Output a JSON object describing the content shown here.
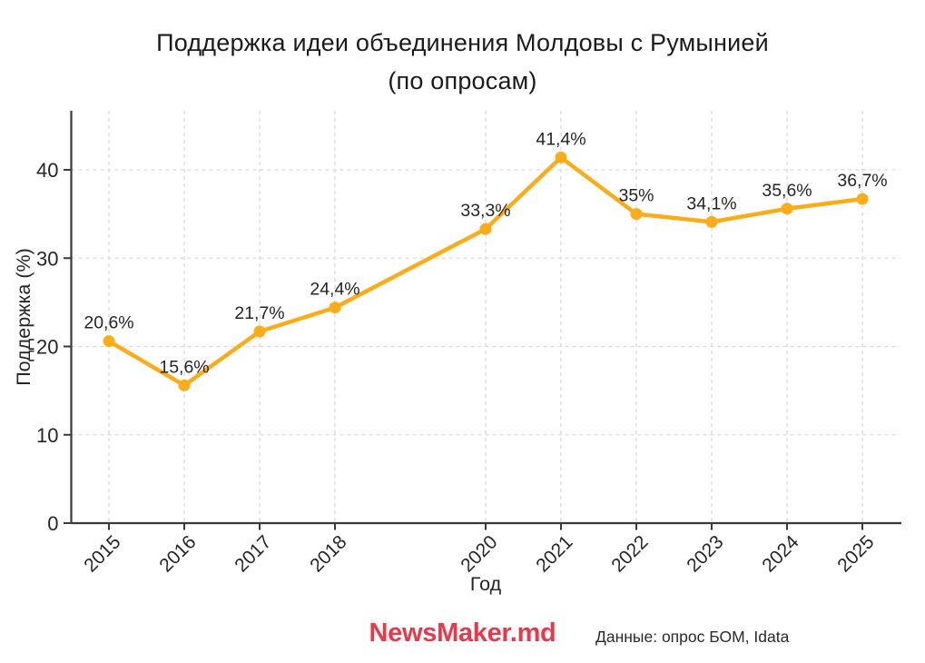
{
  "title": {
    "line1": "Поддержка идеи объединения Молдовы с Румынией",
    "line2": "(по опросам)"
  },
  "footer": {
    "brand": "NewsMaker.md",
    "source": "Данные: опрос БОМ, Idata"
  },
  "chart_data": {
    "type": "line",
    "title": "Поддержка идеи объединения Молдовы с Румынией (по опросам)",
    "xlabel": "Год",
    "ylabel": "Поддержка (%)",
    "x": [
      2015,
      2016,
      2017,
      2018,
      2020,
      2021,
      2022,
      2023,
      2024,
      2025
    ],
    "values": [
      20.6,
      15.6,
      21.7,
      24.4,
      33.3,
      41.4,
      35,
      34.1,
      35.6,
      36.7
    ],
    "point_labels": [
      "20,6%",
      "15,6%",
      "21,7%",
      "24,4%",
      "33,3%",
      "41,4%",
      "35%",
      "34,1%",
      "35,6%",
      "36,7%"
    ],
    "xticks": [
      2015,
      2016,
      2017,
      2018,
      2020,
      2021,
      2022,
      2023,
      2024,
      2025
    ],
    "yticks": [
      0,
      10,
      20,
      30,
      40
    ],
    "xlim": [
      2014.5,
      2025.5
    ],
    "ylim": [
      0,
      46.7
    ],
    "grid": true,
    "grid_style": "dashed",
    "legend": "none",
    "line_color": "#FBAC18",
    "marker": "circle"
  },
  "colors": {
    "line": "#FBAC18",
    "brand_red": "#E8394B",
    "text": "#1B1B1B",
    "grid": "#D9D9D9",
    "spine": "#3A3A3A",
    "background": "#FFFFFF"
  }
}
